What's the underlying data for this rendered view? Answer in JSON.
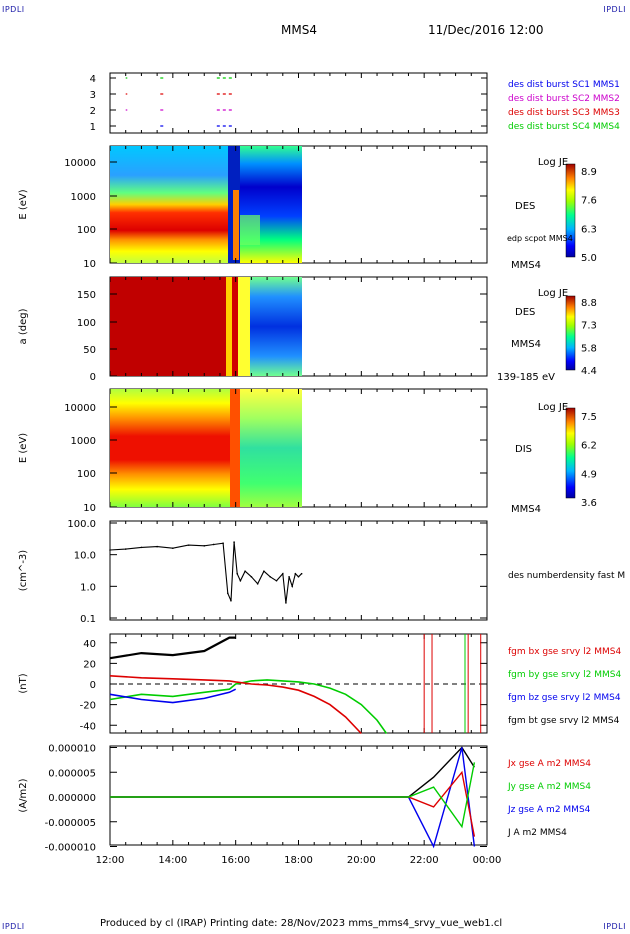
{
  "header": {
    "corner_left": "IPDLI",
    "corner_right": "IPDLI",
    "spacecraft": "MMS4",
    "datetime": "11/Dec/2016 12:00"
  },
  "footer": {
    "text": "Produced by cl (IRAP)   Printing date: 28/Nov/2023   mms_mms4_srvy_vue_web1.cl",
    "corner_left": "IPDLI",
    "corner_right": "IPDLI"
  },
  "time_axis": {
    "ticks": [
      "12:00",
      "14:00",
      "16:00",
      "18:00",
      "20:00",
      "22:00",
      "00:00"
    ],
    "hours": [
      12,
      14,
      16,
      18,
      20,
      22,
      24
    ]
  },
  "colors": {
    "bx": "#dd0000",
    "by": "#00cc00",
    "bz": "#0000ee",
    "bt": "#000000",
    "c1": "#0000ee",
    "c2": "#cc00cc",
    "c3": "#dd0000",
    "c4": "#00cc00"
  },
  "chart_data": [
    {
      "type": "scatter",
      "panel": "burst",
      "yticks": [
        "4",
        "3",
        "2",
        "1"
      ],
      "legend": [
        "des dist burst SC1 MMS1",
        "des dist burst SC2 MMS2",
        "des dist burst SC3 MMS3",
        "des dist burst SC4 MMS4"
      ],
      "segments": [
        {
          "level": 4,
          "start": 12.5,
          "end": 12.55
        },
        {
          "level": 4,
          "start": 13.6,
          "end": 13.75
        },
        {
          "level": 4,
          "start": 15.4,
          "end": 15.9
        },
        {
          "level": 3,
          "start": 12.5,
          "end": 12.55
        },
        {
          "level": 3,
          "start": 13.6,
          "end": 13.75
        },
        {
          "level": 3,
          "start": 15.4,
          "end": 15.95
        },
        {
          "level": 2,
          "start": 12.5,
          "end": 12.55
        },
        {
          "level": 2,
          "start": 13.6,
          "end": 13.75
        },
        {
          "level": 2,
          "start": 15.4,
          "end": 15.9
        },
        {
          "level": 1,
          "start": 13.6,
          "end": 13.75
        },
        {
          "level": 1,
          "start": 15.4,
          "end": 15.9
        }
      ]
    },
    {
      "type": "heatmap",
      "panel": "des_energy",
      "ylabel": "E (eV)",
      "yticks": [
        "10000",
        "1000",
        "100",
        "10"
      ],
      "log_y": true,
      "data_end_hour": 18.2,
      "label": "DES",
      "side_label": "edp scpot MMS4",
      "below_label": "MMS4",
      "colorbar": {
        "title": "Log JE",
        "ticks": [
          "8.9",
          "7.6",
          "6.3",
          "5.0"
        ]
      }
    },
    {
      "type": "heatmap",
      "panel": "des_pitch",
      "ylabel": "a (deg)",
      "yticks": [
        "150",
        "100",
        "50",
        "0"
      ],
      "data_end_hour": 18.2,
      "label": "DES",
      "side_label": "MMS4",
      "below_label": "139-185 eV",
      "colorbar": {
        "title": "Log JE",
        "ticks": [
          "8.8",
          "7.3",
          "5.8",
          "4.4"
        ]
      }
    },
    {
      "type": "heatmap",
      "panel": "dis_energy",
      "ylabel": "E (eV)",
      "yticks": [
        "10000",
        "1000",
        "100",
        "10"
      ],
      "log_y": true,
      "data_end_hour": 18.2,
      "label": "DIS",
      "below_label": "MMS4",
      "colorbar": {
        "title": "Log JE",
        "ticks": [
          "7.5",
          "6.2",
          "4.9",
          "3.6"
        ]
      }
    },
    {
      "type": "line",
      "panel": "density",
      "ylabel": "(cm^-3)",
      "yticks": [
        "100.0",
        "10.0",
        "1.0",
        "0.1"
      ],
      "log_y": true,
      "ylim": [
        0.1,
        100
      ],
      "legend": "des numberdensity fast M",
      "x": [
        12.0,
        12.5,
        13.0,
        13.5,
        14.0,
        14.5,
        15.0,
        15.3,
        15.6,
        15.75,
        15.85,
        15.95,
        16.05,
        16.15,
        16.3,
        16.5,
        16.7,
        16.9,
        17.1,
        17.3,
        17.5,
        17.6,
        17.7,
        17.8,
        17.9,
        18.0,
        18.1
      ],
      "y": [
        14,
        15,
        17,
        18,
        16,
        20,
        19,
        21,
        23,
        0.6,
        0.35,
        25,
        2.5,
        1.5,
        3,
        2,
        1.2,
        3,
        2,
        1.5,
        2.5,
        0.3,
        2,
        1,
        2.5,
        2,
        2.5
      ]
    },
    {
      "type": "line",
      "panel": "fgm",
      "ylabel": "(nT)",
      "yticks": [
        "40",
        "20",
        "0",
        "-20",
        "-40"
      ],
      "ylim": [
        -48,
        48
      ],
      "legend": [
        "fgm bx gse srvy l2 MMS4",
        "fgm by gse srvy l2 MMS4",
        "fgm bz gse srvy l2 MMS4",
        "fgm bt gse srvy l2 MMS4"
      ],
      "series": [
        {
          "key": "bx",
          "x": [
            12.0,
            13.0,
            14.0,
            15.0,
            15.8,
            16.0,
            16.5,
            17.0,
            17.5,
            18.0,
            18.5,
            19.0,
            19.5,
            20.0
          ],
          "y": [
            8,
            6,
            5,
            4,
            3,
            2,
            0,
            -1,
            -3,
            -6,
            -12,
            -20,
            -32,
            -48
          ]
        },
        {
          "key": "by",
          "x": [
            12.0,
            13.0,
            14.0,
            15.0,
            15.8,
            16.0,
            16.5,
            17.0,
            17.5,
            18.0,
            18.5,
            19.0,
            19.5,
            20.0,
            20.5,
            20.8
          ],
          "y": [
            -15,
            -10,
            -12,
            -8,
            -5,
            0,
            3,
            4,
            3,
            2,
            0,
            -4,
            -10,
            -20,
            -35,
            -48
          ]
        },
        {
          "key": "bz",
          "x": [
            12.0,
            13.0,
            14.0,
            15.0,
            15.8,
            16.0
          ],
          "y": [
            -10,
            -15,
            -18,
            -14,
            -8,
            -5
          ]
        },
        {
          "key": "bt",
          "x": [
            12.0,
            13.0,
            14.0,
            15.0,
            15.8,
            16.0
          ],
          "y": [
            25,
            30,
            28,
            32,
            45,
            45
          ]
        }
      ]
    },
    {
      "type": "line",
      "panel": "current",
      "ylabel": "(A/m2)",
      "yticks": [
        "0.000010",
        "0.000005",
        "0.000000",
        "-0.000005",
        "-0.000010"
      ],
      "ylim": [
        -1e-05,
        1e-05
      ],
      "legend": [
        "Jx gse A m2 MMS4",
        "Jy gse A m2 MMS4",
        "Jz gse A m2 MMS4",
        "J A m2 MMS4"
      ],
      "series": [
        {
          "key": "jx",
          "x": [
            12.0,
            16.0,
            21.5,
            22.3,
            23.2,
            23.6
          ],
          "y": [
            0,
            0,
            0,
            -2e-06,
            5e-06,
            -8e-06
          ]
        },
        {
          "key": "jy",
          "x": [
            12.0,
            16.0,
            21.5,
            22.3,
            23.2,
            23.6
          ],
          "y": [
            0,
            0,
            0,
            2e-06,
            -6e-06,
            7e-06
          ]
        },
        {
          "key": "jz",
          "x": [
            12.0,
            16.0,
            21.5,
            22.3,
            23.2,
            23.6
          ],
          "y": [
            0,
            0,
            0,
            -1e-05,
            1e-05,
            -1e-05
          ]
        },
        {
          "key": "j",
          "x": [
            12.0,
            16.0,
            21.5,
            22.3,
            23.2,
            23.6
          ],
          "y": [
            0,
            0,
            0,
            4e-06,
            1e-05,
            6e-06
          ]
        }
      ]
    }
  ]
}
